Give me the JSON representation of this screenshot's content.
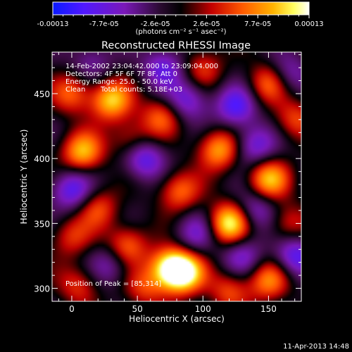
{
  "colorbar": {
    "labels": [
      "-0.00013",
      "-7.7e-05",
      "-2.6e-05",
      "2.6e-05",
      "7.7e-05",
      "0.00013"
    ],
    "units": "(photons cm⁻² s⁻¹ asec⁻²)"
  },
  "chart_data": {
    "type": "heatmap",
    "title": "Reconstructed RHESSI Image",
    "xlabel": "Heliocentric X (arcsec)",
    "ylabel": "Heliocentric Y (arcsec)",
    "xlim": [
      -15,
      175
    ],
    "ylim": [
      290,
      482
    ],
    "x_ticks": [
      0,
      50,
      100,
      150
    ],
    "y_ticks": [
      300,
      350,
      400,
      450
    ],
    "value_range": [
      -0.00013,
      0.00013
    ],
    "colormap": "RHESSI red temperature (blue→purple→black→red→orange→yellow→white)",
    "peak": [
      85,
      314
    ],
    "annotations": {
      "time_range": "14-Feb-2002 23:04:42.000 to 23:09:04.000",
      "detectors": "Detectors: 4F 5F 6F 7F 8F, Att 0",
      "energy": "Energy Range: 25.0 - 50.0 keV",
      "clean": "Clean",
      "total_counts": "Total counts: 5.18E+03",
      "peak_label": "Position of Peak = [85,314]"
    },
    "blobs": [
      {
        "x": 85,
        "y": 312,
        "v": 1.0
      },
      {
        "x": 74,
        "y": 316,
        "v": 0.85
      },
      {
        "x": 120,
        "y": 350,
        "v": 0.95
      },
      {
        "x": 112,
        "y": 407,
        "v": 0.7
      },
      {
        "x": 8,
        "y": 405,
        "v": 0.75
      },
      {
        "x": 30,
        "y": 445,
        "v": 0.8
      },
      {
        "x": 150,
        "y": 458,
        "v": 0.55
      },
      {
        "x": 150,
        "y": 384,
        "v": 0.75
      },
      {
        "x": 150,
        "y": 306,
        "v": 0.6
      },
      {
        "x": 42,
        "y": 333,
        "v": 0.55
      },
      {
        "x": 82,
        "y": 375,
        "v": 0.55
      },
      {
        "x": 68,
        "y": 432,
        "v": 0.5
      },
      {
        "x": 0,
        "y": 340,
        "v": 0.4
      },
      {
        "x": 20,
        "y": 362,
        "v": 0.45
      },
      {
        "x": 100,
        "y": 470,
        "v": 0.4
      },
      {
        "x": 170,
        "y": 430,
        "v": 0.45
      },
      {
        "x": 5,
        "y": 302,
        "v": 0.4
      },
      {
        "x": 55,
        "y": 300,
        "v": 0.4
      },
      {
        "x": 45,
        "y": 415,
        "v": 0.4
      },
      {
        "x": 120,
        "y": 298,
        "v": 0.45
      },
      {
        "x": 165,
        "y": 350,
        "v": 0.4
      },
      {
        "x": 0,
        "y": 450,
        "v": 0.5
      },
      {
        "x": 55,
        "y": 400,
        "v": -0.6
      },
      {
        "x": 0,
        "y": 376,
        "v": -0.6
      },
      {
        "x": 88,
        "y": 445,
        "v": -0.5
      },
      {
        "x": 125,
        "y": 440,
        "v": -0.6
      },
      {
        "x": 170,
        "y": 325,
        "v": -0.6
      },
      {
        "x": 95,
        "y": 342,
        "v": -0.4
      },
      {
        "x": 30,
        "y": 318,
        "v": -0.35
      },
      {
        "x": 140,
        "y": 410,
        "v": -0.5
      },
      {
        "x": 165,
        "y": 465,
        "v": -0.4
      },
      {
        "x": 70,
        "y": 470,
        "v": -0.5
      },
      {
        "x": 130,
        "y": 325,
        "v": -0.4
      },
      {
        "x": 15,
        "y": 475,
        "v": -0.3
      },
      {
        "x": 140,
        "y": 360,
        "v": -0.45
      }
    ]
  },
  "footer": {
    "timestamp": "11-Apr-2013 14:48"
  }
}
